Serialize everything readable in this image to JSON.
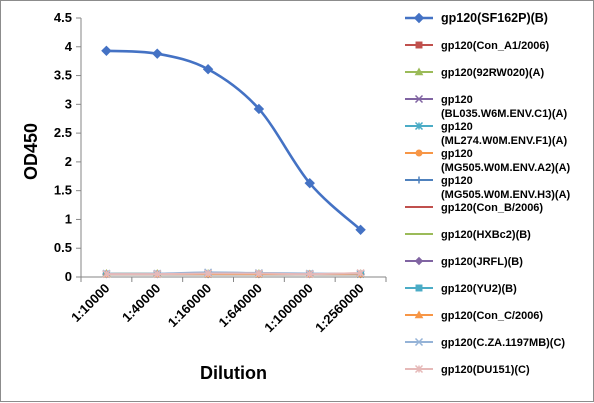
{
  "chart_data": {
    "type": "line",
    "xlabel": "Dilution",
    "ylabel": "OD450",
    "ylim": [
      0,
      4.5
    ],
    "y_ticks": [
      "0",
      "0.5",
      "1",
      "1.5",
      "2",
      "2.5",
      "3",
      "3.5",
      "4",
      "4.5"
    ],
    "categories": [
      "1:10000",
      "1:40000",
      "1:160000",
      "1:640000",
      "1:1000000",
      "1:2560000"
    ],
    "grid": false,
    "legend_position": "right",
    "series": [
      {
        "name": "gp120(SF162P)(B)",
        "color": "#4472c4",
        "marker": "diamond",
        "values": [
          3.93,
          3.88,
          3.61,
          2.92,
          1.63,
          0.82
        ]
      },
      {
        "name": "gp120(Con_A1/2006)",
        "color": "#c0504d",
        "marker": "square",
        "values": [
          0.05,
          0.05,
          0.05,
          0.05,
          0.05,
          0.05
        ]
      },
      {
        "name": "gp120(92RW020)(A)",
        "color": "#9bbb59",
        "marker": "triangle",
        "values": [
          0.06,
          0.06,
          0.06,
          0.06,
          0.05,
          0.06
        ]
      },
      {
        "name": [
          "gp120",
          "(BL035.W6M.ENV.C1)(A)"
        ],
        "color": "#8064a2",
        "marker": "x",
        "values": [
          0.05,
          0.05,
          0.05,
          0.05,
          0.05,
          0.05
        ]
      },
      {
        "name": [
          "gp120",
          "(ML274.W0M.ENV.F1)(A)"
        ],
        "color": "#4bacc6",
        "marker": "star",
        "values": [
          0.05,
          0.05,
          0.05,
          0.05,
          0.05,
          0.05
        ]
      },
      {
        "name": [
          "gp120",
          "(MG505.W0M.ENV.A2)(A)"
        ],
        "color": "#f79646",
        "marker": "circle",
        "values": [
          0.05,
          0.05,
          0.05,
          0.05,
          0.05,
          0.05
        ]
      },
      {
        "name": [
          "gp120",
          "(MG505.W0M.ENV.H3)(A)"
        ],
        "color": "#4f81bd",
        "marker": "plus",
        "values": [
          0.05,
          0.05,
          0.05,
          0.05,
          0.05,
          0.05
        ]
      },
      {
        "name": "gp120(Con_B/2006)",
        "color": "#c0504d",
        "marker": "dash",
        "values": [
          0.05,
          0.05,
          0.05,
          0.05,
          0.05,
          0.05
        ]
      },
      {
        "name": "gp120(HXBc2)(B)",
        "color": "#9bbb59",
        "marker": "dash",
        "values": [
          0.05,
          0.05,
          0.05,
          0.05,
          0.05,
          0.05
        ]
      },
      {
        "name": "gp120(JRFL)(B)",
        "color": "#8064a2",
        "marker": "diamond",
        "values": [
          0.05,
          0.05,
          0.05,
          0.05,
          0.05,
          0.05
        ]
      },
      {
        "name": "gp120(YU2)(B)",
        "color": "#4bacc6",
        "marker": "square",
        "values": [
          0.05,
          0.05,
          0.05,
          0.05,
          0.05,
          0.05
        ]
      },
      {
        "name": "gp120(Con_C/2006)",
        "color": "#f79646",
        "marker": "triangle",
        "values": [
          0.05,
          0.05,
          0.05,
          0.05,
          0.05,
          0.05
        ]
      },
      {
        "name": "gp120(C.ZA.1197MB)(C)",
        "color": "#95b3d7",
        "marker": "x",
        "values": [
          0.06,
          0.06,
          0.08,
          0.07,
          0.06,
          0.06
        ]
      },
      {
        "name": "gp120(DU151)(C)",
        "color": "#e6b9b8",
        "marker": "star",
        "values": [
          0.05,
          0.05,
          0.06,
          0.06,
          0.05,
          0.07
        ]
      }
    ]
  }
}
